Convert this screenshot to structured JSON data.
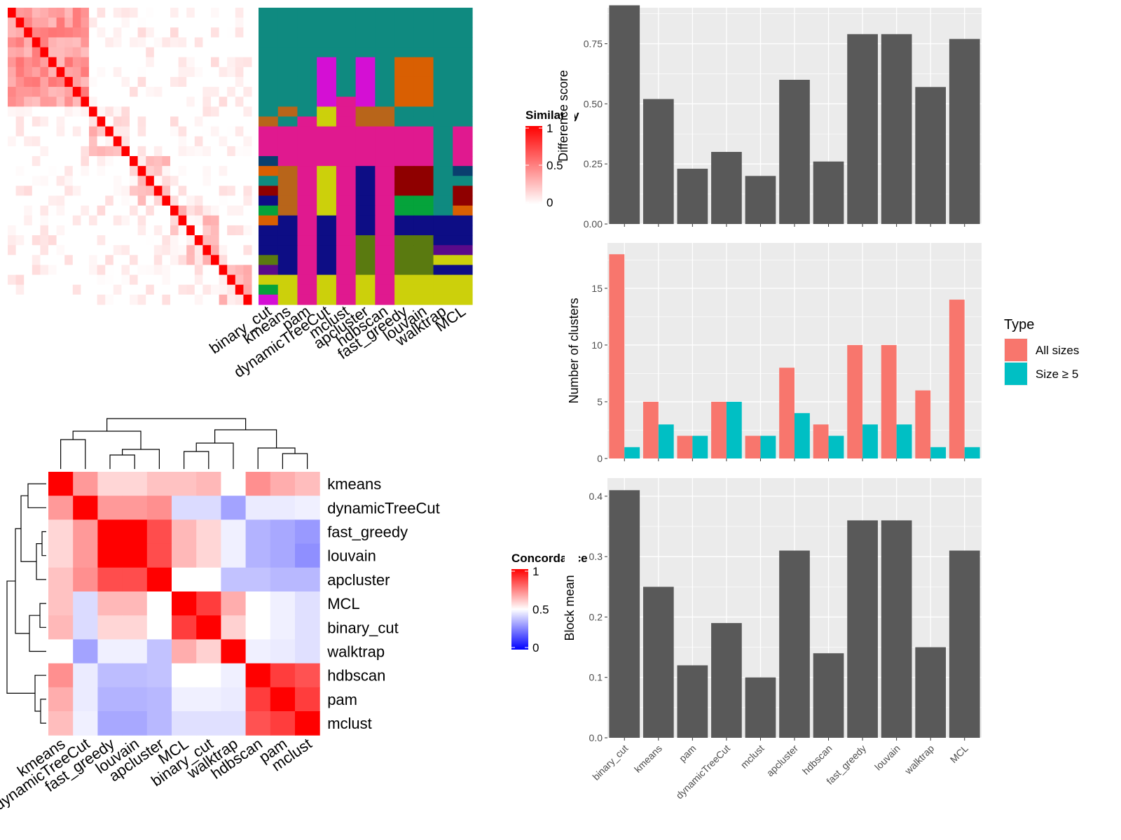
{
  "methods_order": [
    "binary_cut",
    "kmeans",
    "pam",
    "dynamicTreeCut",
    "mclust",
    "apcluster",
    "hdbscan",
    "fast_greedy",
    "louvain",
    "walktrap",
    "MCL"
  ],
  "similarity_panel": {
    "legend_title": "Similarity",
    "legend_ticks": [
      "1",
      "0.5",
      "0"
    ],
    "columns": [
      "binary_cut",
      "kmeans",
      "pam",
      "dynamicTreeCut",
      "mclust",
      "apcluster",
      "hdbscan",
      "fast_greedy",
      "louvain",
      "walktrap",
      "MCL"
    ]
  },
  "concordance_panel": {
    "legend_title": "Concordance",
    "legend_ticks": [
      "1",
      "0.5",
      "0"
    ],
    "order": [
      "kmeans",
      "dynamicTreeCut",
      "fast_greedy",
      "louvain",
      "apcluster",
      "MCL",
      "binary_cut",
      "walktrap",
      "hdbscan",
      "pam",
      "mclust"
    ]
  },
  "colors": {
    "bar": "#595959",
    "all_sizes": "#F8766D",
    "size_ge5": "#00BFC4",
    "panel_bg": "#EBEBEB",
    "heat_high": "#FF0000",
    "heat_low": "#0000FF"
  },
  "chart_data": [
    {
      "type": "bar",
      "ylabel": "Difference score",
      "ylim": [
        0,
        0.9
      ],
      "yticks": [
        "0.00",
        "0.25",
        "0.50",
        "0.75"
      ],
      "categories": [
        "binary_cut",
        "kmeans",
        "pam",
        "dynamicTreeCut",
        "mclust",
        "apcluster",
        "hdbscan",
        "fast_greedy",
        "louvain",
        "walktrap",
        "MCL"
      ],
      "values": [
        0.91,
        0.52,
        0.23,
        0.3,
        0.2,
        0.6,
        0.26,
        0.79,
        0.79,
        0.57,
        0.77
      ]
    },
    {
      "type": "bar",
      "ylabel": "Number of clusters",
      "ylim": [
        0,
        19
      ],
      "yticks": [
        "0",
        "5",
        "10",
        "15"
      ],
      "legend_title": "Type",
      "legend_position": "right",
      "categories": [
        "binary_cut",
        "kmeans",
        "pam",
        "dynamicTreeCut",
        "mclust",
        "apcluster",
        "hdbscan",
        "fast_greedy",
        "louvain",
        "walktrap",
        "MCL"
      ],
      "series": [
        {
          "name": "All sizes",
          "values": [
            18,
            5,
            2,
            5,
            2,
            8,
            3,
            10,
            10,
            6,
            14
          ]
        },
        {
          "name": "Size ≥ 5",
          "values": [
            1,
            3,
            2,
            5,
            2,
            4,
            2,
            3,
            3,
            1,
            1
          ]
        }
      ]
    },
    {
      "type": "bar",
      "ylabel": "Block mean",
      "ylim": [
        0,
        0.43
      ],
      "yticks": [
        "0.0",
        "0.1",
        "0.2",
        "0.3",
        "0.4"
      ],
      "categories": [
        "binary_cut",
        "kmeans",
        "pam",
        "dynamicTreeCut",
        "mclust",
        "apcluster",
        "hdbscan",
        "fast_greedy",
        "louvain",
        "walktrap",
        "MCL"
      ],
      "values": [
        0.41,
        0.25,
        0.12,
        0.19,
        0.1,
        0.31,
        0.14,
        0.36,
        0.36,
        0.15,
        0.31
      ]
    },
    {
      "type": "heatmap",
      "rows": [
        "kmeans",
        "dynamicTreeCut",
        "fast_greedy",
        "louvain",
        "apcluster",
        "MCL",
        "binary_cut",
        "walktrap",
        "hdbscan",
        "pam",
        "mclust"
      ],
      "columns": [
        "kmeans",
        "dynamicTreeCut",
        "fast_greedy",
        "louvain",
        "apcluster",
        "MCL",
        "binary_cut",
        "walktrap",
        "hdbscan",
        "pam",
        "mclust"
      ],
      "range": [
        0,
        1
      ],
      "values": [
        [
          1.0,
          0.7,
          0.58,
          0.58,
          0.62,
          0.62,
          0.64,
          0.5,
          0.72,
          0.66,
          0.63
        ],
        [
          0.7,
          1.0,
          0.7,
          0.7,
          0.72,
          0.43,
          0.43,
          0.32,
          0.46,
          0.46,
          0.47
        ],
        [
          0.58,
          0.7,
          1.0,
          1.0,
          0.85,
          0.64,
          0.58,
          0.47,
          0.35,
          0.33,
          0.3
        ],
        [
          0.58,
          0.7,
          1.0,
          1.0,
          0.85,
          0.64,
          0.58,
          0.47,
          0.35,
          0.33,
          0.28
        ],
        [
          0.62,
          0.72,
          0.85,
          0.85,
          1.0,
          0.5,
          0.5,
          0.38,
          0.38,
          0.36,
          0.36
        ],
        [
          0.62,
          0.43,
          0.64,
          0.64,
          0.5,
          1.0,
          0.88,
          0.66,
          0.5,
          0.47,
          0.44
        ],
        [
          0.64,
          0.43,
          0.58,
          0.58,
          0.5,
          0.88,
          1.0,
          0.59,
          0.5,
          0.47,
          0.44
        ],
        [
          0.5,
          0.32,
          0.47,
          0.47,
          0.38,
          0.66,
          0.59,
          1.0,
          0.47,
          0.46,
          0.44
        ],
        [
          0.72,
          0.46,
          0.37,
          0.37,
          0.38,
          0.5,
          0.5,
          0.47,
          1.0,
          0.88,
          0.84
        ],
        [
          0.66,
          0.46,
          0.35,
          0.35,
          0.36,
          0.47,
          0.47,
          0.46,
          0.88,
          1.0,
          0.88
        ],
        [
          0.63,
          0.47,
          0.33,
          0.33,
          0.36,
          0.44,
          0.44,
          0.44,
          0.84,
          0.88,
          1.0
        ]
      ]
    }
  ]
}
